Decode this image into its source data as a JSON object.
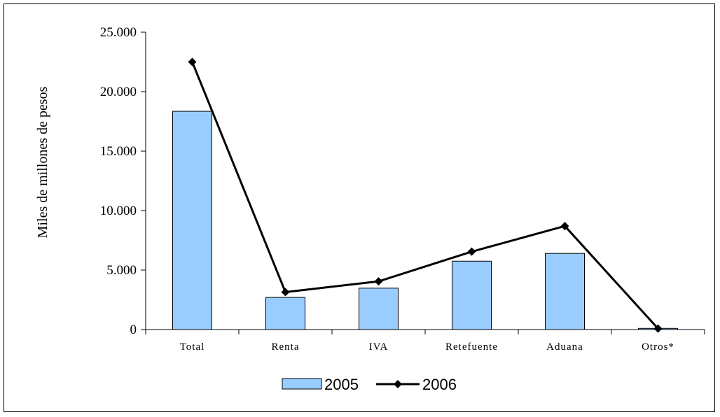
{
  "chart_data": {
    "type": "bar",
    "categories": [
      "Total",
      "Renta",
      "IVA",
      "Retefuente",
      "Aduana",
      "Otros*"
    ],
    "series": [
      {
        "name": "2005",
        "type": "bar",
        "color": "#99ccff",
        "values": [
          18350,
          2700,
          3480,
          5750,
          6400,
          100
        ]
      },
      {
        "name": "2006",
        "type": "line",
        "color": "#000000",
        "marker": "diamond",
        "values": [
          22500,
          3150,
          4050,
          6550,
          8700,
          80
        ]
      }
    ],
    "ylabel": "Miles de millones de pesos",
    "xlabel": "",
    "ylim": [
      0,
      25000
    ],
    "yticks": [
      0,
      5000,
      10000,
      15000,
      20000,
      25000
    ],
    "ytick_labels": [
      "0",
      "5.000",
      "10.000",
      "15.000",
      "20.000",
      "25.000"
    ],
    "grid": false,
    "legend": "bottom"
  }
}
